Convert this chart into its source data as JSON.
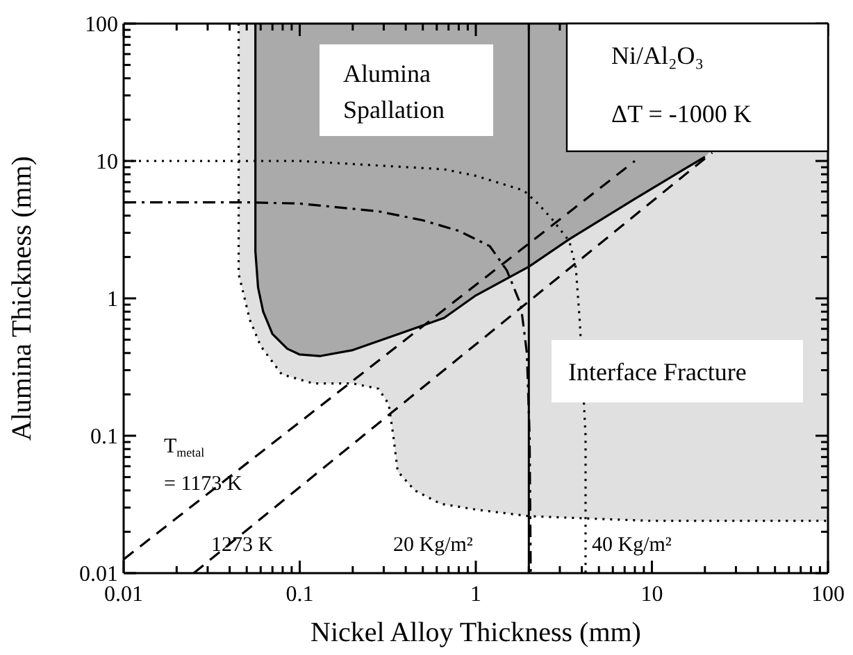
{
  "chart_data": {
    "type": "line",
    "xlabel": "Nickel Alloy Thickness (mm)",
    "ylabel": "Alumina Thickness (mm)",
    "log": "xy",
    "marker": "none",
    "xlim": [
      0.01,
      100
    ],
    "ylim": [
      0.01,
      100
    ],
    "xticks": [
      0.01,
      {
        "value": 0.02,
        "label": null
      },
      {
        "value": 0.03,
        "label": null
      },
      {
        "value": 0.04,
        "label": null
      },
      {
        "value": 0.05,
        "label": null
      },
      {
        "value": 0.06,
        "label": null
      },
      {
        "value": 0.07,
        "label": null
      },
      {
        "value": 0.08,
        "label": null
      },
      {
        "value": 0.09,
        "label": null
      },
      0.1,
      {
        "value": 0.2,
        "label": null
      },
      {
        "value": 0.3,
        "label": null
      },
      {
        "value": 0.4,
        "label": null
      },
      {
        "value": 0.5,
        "label": null
      },
      {
        "value": 0.6,
        "label": null
      },
      {
        "value": 0.7,
        "label": null
      },
      {
        "value": 0.8,
        "label": null
      },
      {
        "value": 0.9,
        "label": null
      },
      1,
      {
        "value": 2,
        "label": null
      },
      {
        "value": 3,
        "label": null
      },
      {
        "value": 4,
        "label": null
      },
      {
        "value": 5,
        "label": null
      },
      {
        "value": 6,
        "label": null
      },
      {
        "value": 7,
        "label": null
      },
      {
        "value": 8,
        "label": null
      },
      {
        "value": 9,
        "label": null
      },
      10,
      {
        "value": 20,
        "label": null
      },
      {
        "value": 30,
        "label": null
      },
      {
        "value": 40,
        "label": null
      },
      {
        "value": 50,
        "label": null
      },
      {
        "value": 60,
        "label": null
      },
      {
        "value": 70,
        "label": null
      },
      {
        "value": 80,
        "label": null
      },
      {
        "value": 90,
        "label": null
      },
      100
    ],
    "yticks": [
      0.01,
      {
        "value": 0.02,
        "label": null
      },
      {
        "value": 0.03,
        "label": null
      },
      {
        "value": 0.04,
        "label": null
      },
      {
        "value": 0.05,
        "label": null
      },
      {
        "value": 0.06,
        "label": null
      },
      {
        "value": 0.07,
        "label": null
      },
      {
        "value": 0.08,
        "label": null
      },
      {
        "value": 0.09,
        "label": null
      },
      0.1,
      {
        "value": 0.2,
        "label": null
      },
      {
        "value": 0.3,
        "label": null
      },
      {
        "value": 0.4,
        "label": null
      },
      {
        "value": 0.5,
        "label": null
      },
      {
        "value": 0.6,
        "label": null
      },
      {
        "value": 0.7,
        "label": null
      },
      {
        "value": 0.8,
        "label": null
      },
      {
        "value": 0.9,
        "label": null
      },
      1,
      {
        "value": 2,
        "label": null
      },
      {
        "value": 3,
        "label": null
      },
      {
        "value": 4,
        "label": null
      },
      {
        "value": 5,
        "label": null
      },
      {
        "value": 6,
        "label": null
      },
      {
        "value": 7,
        "label": null
      },
      {
        "value": 8,
        "label": null
      },
      {
        "value": 9,
        "label": null
      },
      10,
      {
        "value": 20,
        "label": null
      },
      {
        "value": 30,
        "label": null
      },
      {
        "value": 40,
        "label": null
      },
      {
        "value": 50,
        "label": null
      },
      {
        "value": 60,
        "label": null
      },
      {
        "value": 70,
        "label": null
      },
      {
        "value": 80,
        "label": null
      },
      {
        "value": 90,
        "label": null
      },
      100
    ],
    "series": [
      {
        "color": "#000000",
        "line_style": "dotted",
        "x": [
          0.045,
          0.045,
          0.047,
          0.052,
          0.06,
          0.079,
          0.12,
          0.2,
          0.28,
          0.32,
          0.34,
          0.36,
          0.45,
          0.63,
          1,
          2,
          4.3,
          10,
          100
        ],
        "values": [
          100,
          1.5,
          1.2,
          0.7,
          0.45,
          0.28,
          0.24,
          0.24,
          0.22,
          0.17,
          0.1,
          0.055,
          0.04,
          0.032,
          0.029,
          0.026,
          0.025,
          0.024,
          0.024
        ]
      },
      {
        "color": "#000000",
        "line_style": "solid",
        "x": [
          0.056,
          0.056,
          0.058,
          0.062,
          0.07,
          0.085,
          0.1,
          0.13,
          0.2,
          0.38,
          0.66,
          1,
          2,
          3.4,
          8,
          15,
          20
        ],
        "values": [
          100,
          2.2,
          1.2,
          0.8,
          0.55,
          0.43,
          0.39,
          0.38,
          0.42,
          0.56,
          0.72,
          1.05,
          1.7,
          2.7,
          5.3,
          8.6,
          10.7
        ]
      },
      {
        "color": "#000000",
        "line_style": "dashed",
        "x": [
          0.01,
          8
        ],
        "values": [
          0.0126,
          10
        ]
      },
      {
        "color": "#000000",
        "line_style": "dashed",
        "x": [
          0.025,
          22
        ],
        "values": [
          0.01,
          11.5
        ]
      },
      {
        "color": "#000000",
        "line_style": "dashdot",
        "x": [
          0.01,
          0.05,
          0.1,
          0.28,
          0.5,
          0.8,
          1.2,
          1.5,
          1.8,
          1.95,
          2.02,
          2.05
        ],
        "values": [
          5,
          5,
          4.9,
          4.3,
          3.7,
          3.1,
          2.4,
          1.6,
          0.9,
          0.4,
          0.1,
          0.01
        ]
      },
      {
        "color": "#000000",
        "line_style": "dotted",
        "x": [
          0.01,
          0.1,
          0.66,
          1,
          1.87,
          2.25,
          2.7,
          3.4,
          3.7,
          3.9,
          4.2,
          4.2
        ],
        "values": [
          10,
          10,
          8.7,
          7.8,
          6.1,
          4.9,
          3.8,
          2.6,
          1.67,
          0.66,
          0.1,
          0.01
        ]
      }
    ],
    "ref_lines": [
      {
        "axis": "x",
        "value": 2,
        "color": "#000000",
        "line_style": "solid"
      }
    ],
    "annotations": [
      "Alumina\nSpallation",
      "Ni/Al₂O₃\nΔT = -1000 K",
      "Interface Fracture",
      "T$_{metal}$\n= 1173 K",
      "1273 K",
      "20 Kg/m²",
      "40 Kg/m²"
    ]
  }
}
